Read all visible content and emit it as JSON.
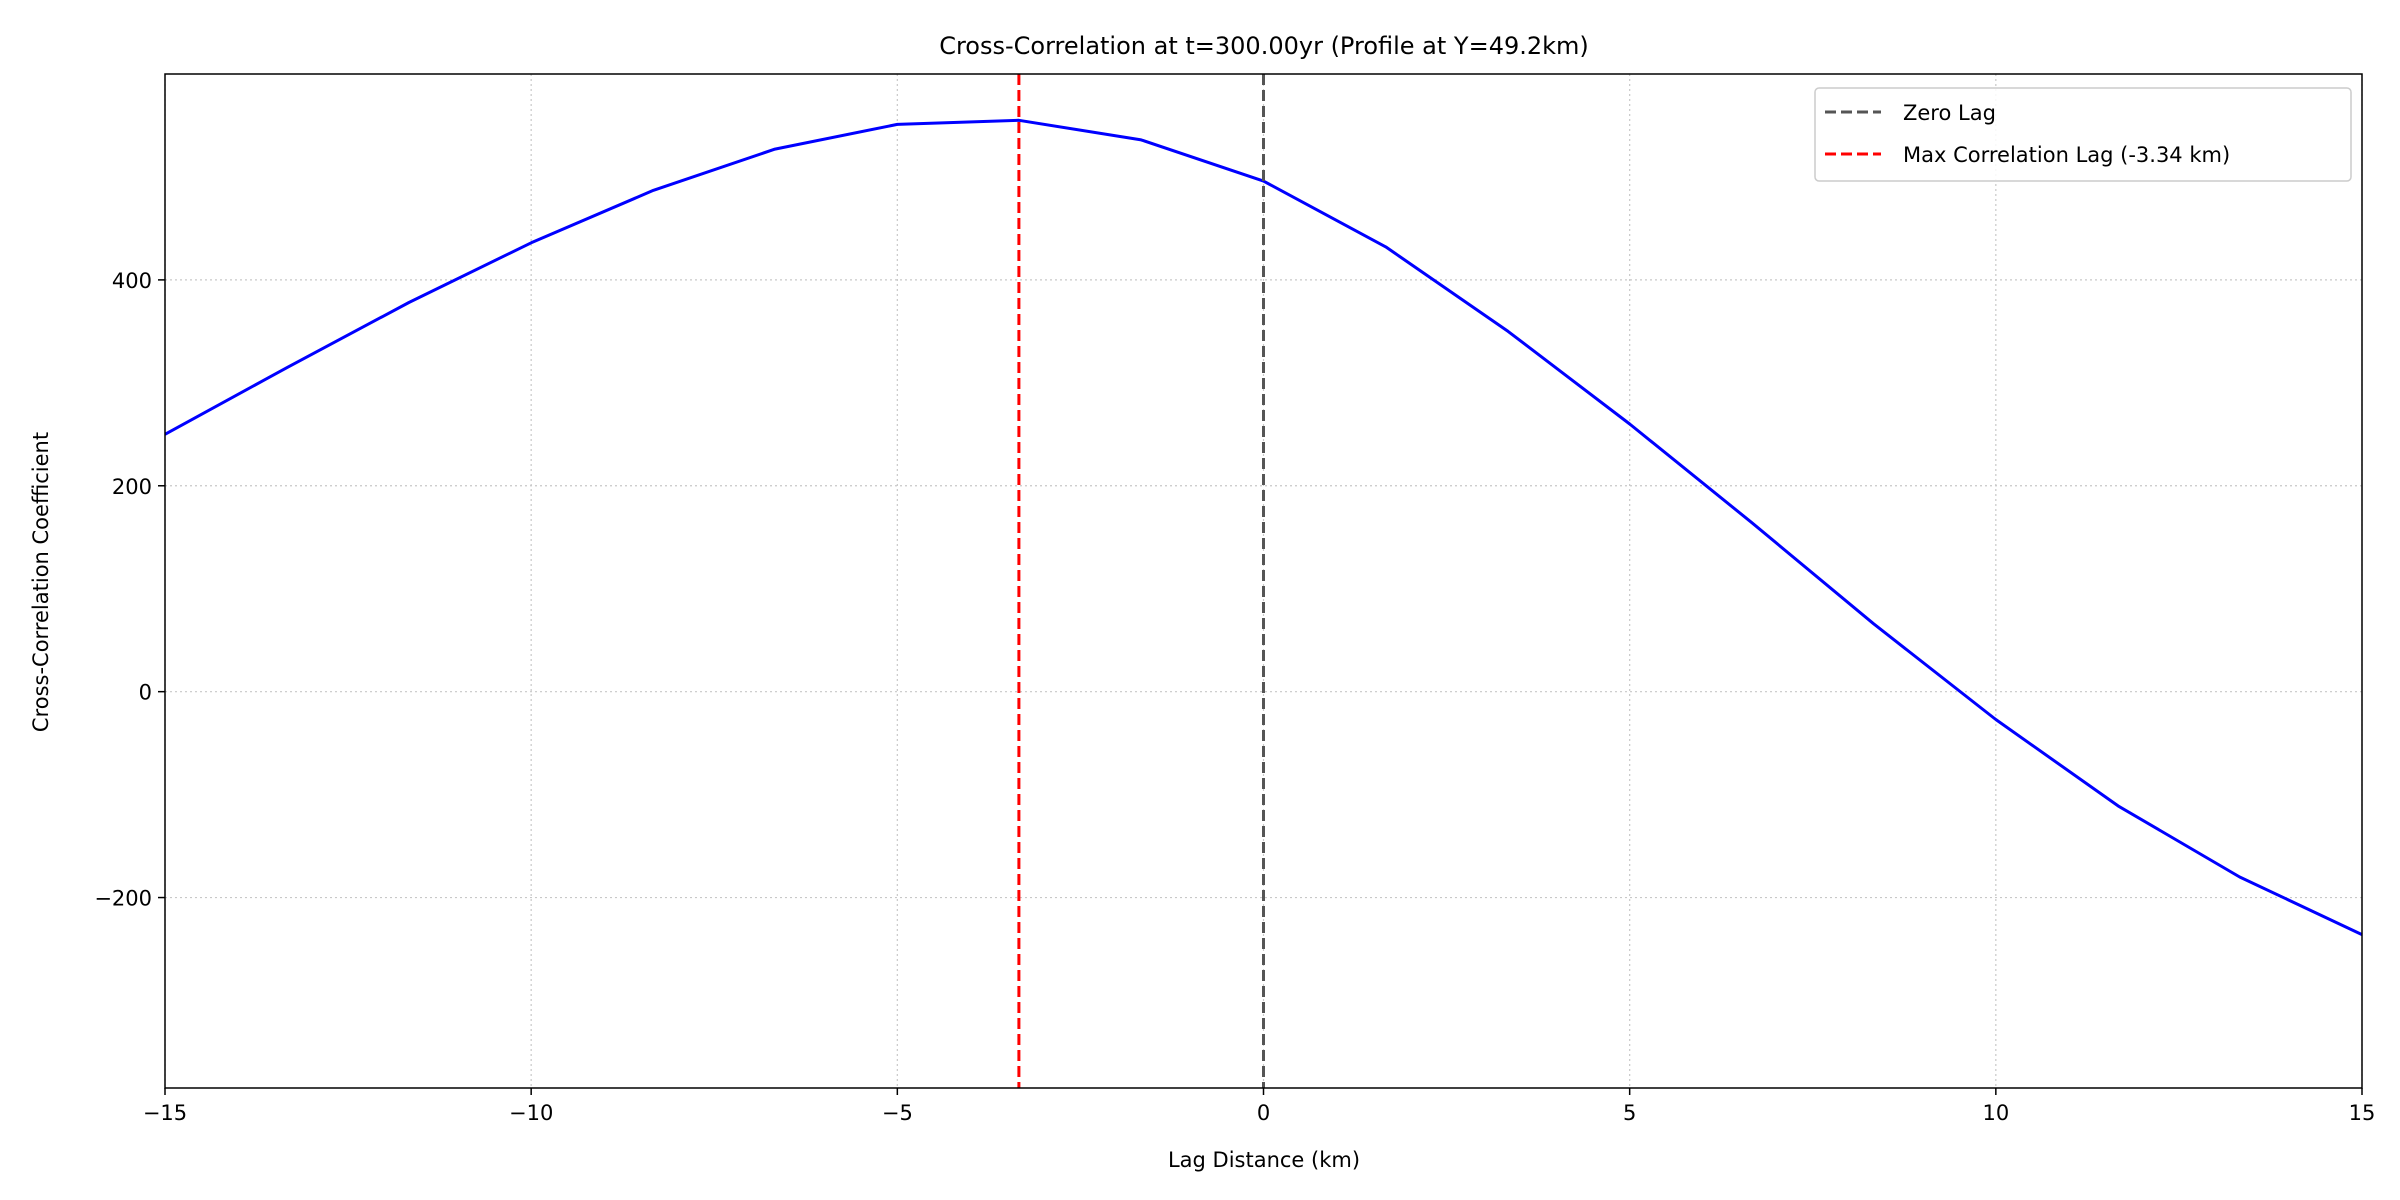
{
  "chart_data": {
    "type": "line",
    "title": "Cross-Correlation at t=300.00yr (Profile at Y=49.2km)",
    "xlabel": "Lag Distance (km)",
    "ylabel": "Cross-Correlation Coefficient",
    "xlim": [
      -15,
      15
    ],
    "ylim": [
      -385,
      600
    ],
    "xticks": [
      -15,
      -10,
      -5,
      0,
      5,
      10,
      15
    ],
    "xtick_labels": [
      "−15",
      "−10",
      "−5",
      "0",
      "5",
      "10",
      "15"
    ],
    "yticks": [
      -200,
      0,
      200,
      400
    ],
    "ytick_labels": [
      "−200",
      "0",
      "200",
      "400"
    ],
    "grid": true,
    "legend_position": "top-right",
    "series": [
      {
        "color": "#0000ff",
        "x": [
          -15,
          -13.33,
          -11.67,
          -10,
          -8.33,
          -6.67,
          -5,
          -3.34,
          -1.67,
          0,
          1.67,
          3.34,
          5,
          6.67,
          8.33,
          10,
          11.67,
          13.33,
          15
        ],
        "y": [
          250,
          315,
          378,
          436,
          487,
          527,
          551,
          555,
          536,
          496,
          432,
          350,
          260,
          164,
          66,
          -27,
          -111,
          -180,
          -236
        ]
      }
    ],
    "vlines": [
      {
        "x": 0,
        "label": "Zero Lag",
        "color": "#555555"
      },
      {
        "x": -3.34,
        "label": "Max Correlation Lag (-3.34 km)",
        "color": "#ff0000"
      }
    ]
  }
}
